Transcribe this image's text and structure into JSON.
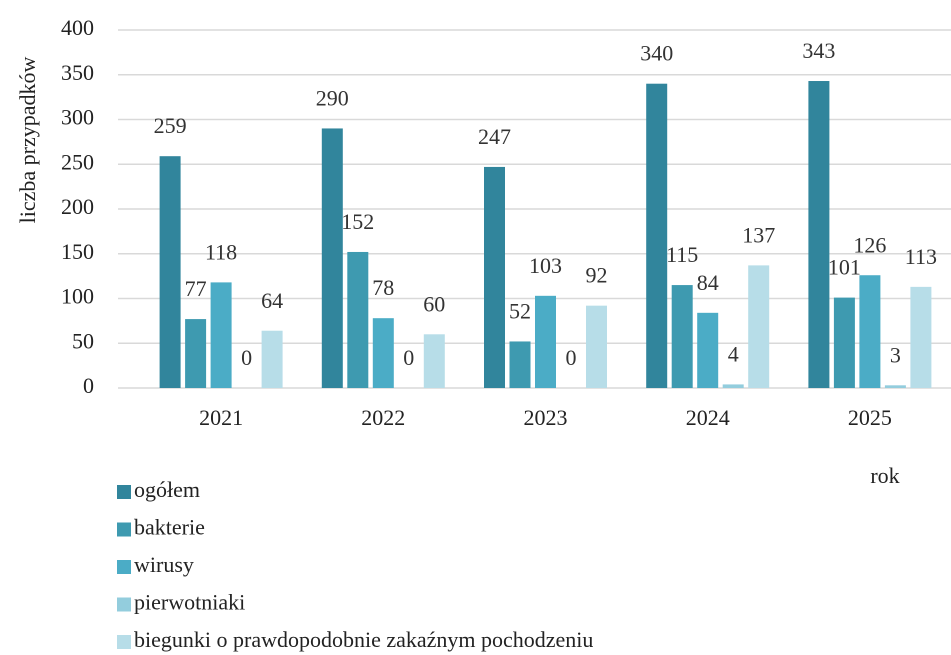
{
  "chart_data": {
    "type": "bar",
    "y_label": "liczba przypadków",
    "x_label": "rok",
    "categories": [
      "2021",
      "2022",
      "2023",
      "2024",
      "2025"
    ],
    "series": [
      {
        "name": "ogółem",
        "color": "#31859c",
        "values": [
          259,
          290,
          247,
          340,
          343
        ]
      },
      {
        "name": "bakterie",
        "color": "#3e9ab0",
        "values": [
          77,
          152,
          52,
          115,
          101
        ]
      },
      {
        "name": "wirusy",
        "color": "#4bacc6",
        "values": [
          118,
          78,
          103,
          84,
          126
        ]
      },
      {
        "name": "pierwotniaki",
        "color": "#93cddd",
        "values": [
          0,
          0,
          0,
          4,
          3
        ]
      },
      {
        "name": "biegunki o prawdopodobnie zakaźnym pochodzeniu",
        "color": "#b7dde8",
        "values": [
          64,
          60,
          92,
          137,
          113
        ]
      }
    ],
    "ylim": [
      0,
      400
    ],
    "yticks": [
      0,
      50,
      100,
      150,
      200,
      250,
      300,
      350,
      400
    ],
    "grid": true
  }
}
